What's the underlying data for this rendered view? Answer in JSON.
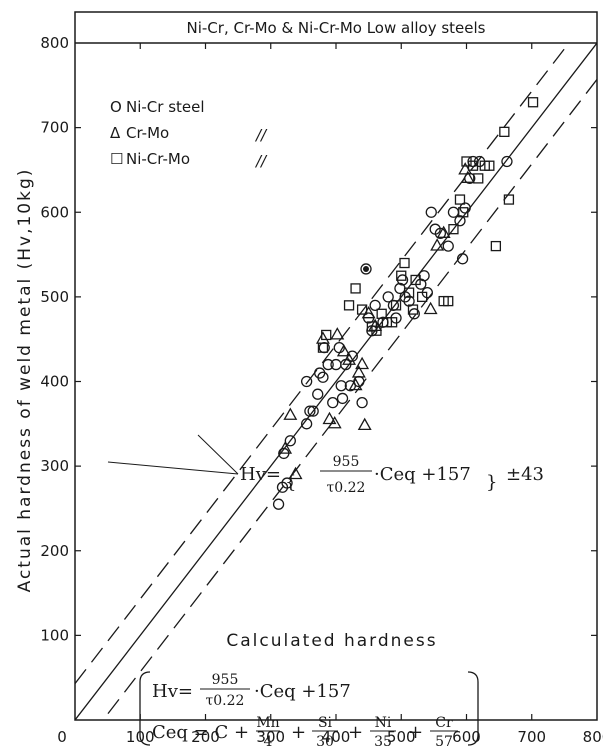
{
  "chart_data": {
    "type": "scatter",
    "title": "Ni-Cr, Cr-Mo & Ni-Cr-Mo Low alloy steels",
    "xlabel": "Calculated hardness",
    "ylabel": "Actual hardness of weld metal (Hv,10kg)",
    "xlim": [
      0,
      800
    ],
    "ylim": [
      0,
      800
    ],
    "xticks": [
      "0",
      "100",
      "200",
      "300",
      "400",
      "500",
      "600",
      "700",
      "800"
    ],
    "yticks": [
      "100",
      "200",
      "300",
      "400",
      "500",
      "600",
      "700",
      "800"
    ],
    "grid": false,
    "legend_position": "top-left",
    "series": [
      {
        "name": "Ni-Cr steel",
        "marker": "circle",
        "points": [
          [
            312,
            255
          ],
          [
            318,
            275
          ],
          [
            325,
            280
          ],
          [
            320,
            315
          ],
          [
            330,
            330
          ],
          [
            355,
            350
          ],
          [
            360,
            365
          ],
          [
            365,
            365
          ],
          [
            355,
            400
          ],
          [
            372,
            385
          ],
          [
            375,
            410
          ],
          [
            380,
            405
          ],
          [
            382,
            440
          ],
          [
            388,
            420
          ],
          [
            395,
            375
          ],
          [
            400,
            420
          ],
          [
            405,
            440
          ],
          [
            408,
            395
          ],
          [
            410,
            380
          ],
          [
            415,
            420
          ],
          [
            422,
            395
          ],
          [
            425,
            430
          ],
          [
            435,
            400
          ],
          [
            440,
            375
          ],
          [
            446,
            533
          ],
          [
            450,
            475
          ],
          [
            455,
            460
          ],
          [
            460,
            490
          ],
          [
            472,
            470
          ],
          [
            480,
            500
          ],
          [
            488,
            490
          ],
          [
            492,
            475
          ],
          [
            498,
            510
          ],
          [
            502,
            520
          ],
          [
            506,
            500
          ],
          [
            512,
            495
          ],
          [
            520,
            480
          ],
          [
            530,
            515
          ],
          [
            535,
            525
          ],
          [
            540,
            505
          ],
          [
            546,
            600
          ],
          [
            552,
            580
          ],
          [
            560,
            575
          ],
          [
            572,
            560
          ],
          [
            580,
            600
          ],
          [
            590,
            590
          ],
          [
            594,
            545
          ],
          [
            598,
            605
          ],
          [
            605,
            640
          ],
          [
            610,
            660
          ],
          [
            620,
            660
          ],
          [
            662,
            660
          ]
        ]
      },
      {
        "name": "Cr-Mo",
        "marker": "triangle",
        "points": [
          [
            322,
            320
          ],
          [
            330,
            360
          ],
          [
            338,
            290
          ],
          [
            380,
            450
          ],
          [
            390,
            355
          ],
          [
            398,
            350
          ],
          [
            402,
            455
          ],
          [
            412,
            435
          ],
          [
            420,
            425
          ],
          [
            430,
            395
          ],
          [
            435,
            410
          ],
          [
            440,
            420
          ],
          [
            444,
            348
          ],
          [
            450,
            480
          ],
          [
            460,
            465
          ],
          [
            545,
            485
          ],
          [
            555,
            560
          ],
          [
            565,
            575
          ],
          [
            598,
            650
          ],
          [
            602,
            640
          ]
        ]
      },
      {
        "name": "Ni-Cr-Mo",
        "marker": "square",
        "points": [
          [
            380,
            440
          ],
          [
            385,
            455
          ],
          [
            420,
            490
          ],
          [
            430,
            510
          ],
          [
            440,
            485
          ],
          [
            455,
            465
          ],
          [
            462,
            460
          ],
          [
            470,
            480
          ],
          [
            478,
            470
          ],
          [
            486,
            470
          ],
          [
            492,
            490
          ],
          [
            500,
            525
          ],
          [
            505,
            540
          ],
          [
            512,
            505
          ],
          [
            518,
            485
          ],
          [
            522,
            520
          ],
          [
            532,
            500
          ],
          [
            565,
            495
          ],
          [
            572,
            495
          ],
          [
            580,
            580
          ],
          [
            590,
            615
          ],
          [
            595,
            600
          ],
          [
            600,
            660
          ],
          [
            610,
            655
          ],
          [
            618,
            640
          ],
          [
            628,
            655
          ],
          [
            635,
            655
          ],
          [
            645,
            560
          ],
          [
            658,
            695
          ],
          [
            665,
            615
          ],
          [
            702,
            730
          ]
        ]
      }
    ],
    "lines": [
      {
        "kind": "center",
        "y_eq_x_offset": 0,
        "style": "solid"
      },
      {
        "kind": "upper-bound",
        "y_eq_x_offset": 43,
        "style": "dashed"
      },
      {
        "kind": "lower-bound",
        "y_eq_x_offset": -43,
        "style": "dashed"
      }
    ]
  },
  "legend": [
    {
      "symbol": "O",
      "label": "Ni-Cr steel",
      "ditto": ""
    },
    {
      "symbol": "Δ",
      "label": "Cr-Mo",
      "ditto": "//"
    },
    {
      "symbol": "☐",
      "label": "Ni-Cr-Mo",
      "ditto": "//"
    }
  ],
  "annotation": {
    "prefix": "Hv=",
    "numerator": "955",
    "denominator": "τ0.22",
    "tail": "·Ceq +157",
    "suffix": "±43"
  },
  "formula_box": {
    "line1_prefix": "Hv=",
    "line1_num": "955",
    "line1_den": "τ0.22",
    "line1_tail": "·Ceq +157",
    "line2_prefix": "Ceq = C +",
    "fractions": [
      {
        "num": "Mn",
        "den": "4"
      },
      {
        "num": "Si",
        "den": "30"
      },
      {
        "num": "Ni",
        "den": "35"
      },
      {
        "num": "Cr",
        "den": "57"
      }
    ]
  }
}
